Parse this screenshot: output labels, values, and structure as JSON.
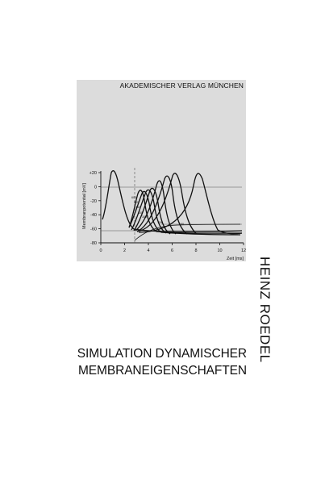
{
  "cover": {
    "publisher": "AKADEMISCHER VERLAG MÜNCHEN",
    "author": "HEINZ ROEDEL",
    "title_line1": "SIMULATION DYNAMISCHER",
    "title_line2": "MEMBRANEIGENSCHAFTEN",
    "panel_color": "#dcdcdc"
  },
  "chart_data": {
    "type": "line",
    "ylabel": "Membranpotential [mV]",
    "xlabel": "Zeit [ms]",
    "x_ticks": [
      "0",
      "2",
      "4",
      "6",
      "8",
      "10",
      "12"
    ],
    "y_ticks": [
      "+20",
      "0",
      "-20",
      "-40",
      "-60",
      "-80"
    ],
    "xlim": [
      0,
      12
    ],
    "ylim": [
      -80,
      20
    ],
    "curve_labels": [
      "600",
      "500",
      "450",
      "400",
      "300",
      "200",
      "150"
    ]
  }
}
